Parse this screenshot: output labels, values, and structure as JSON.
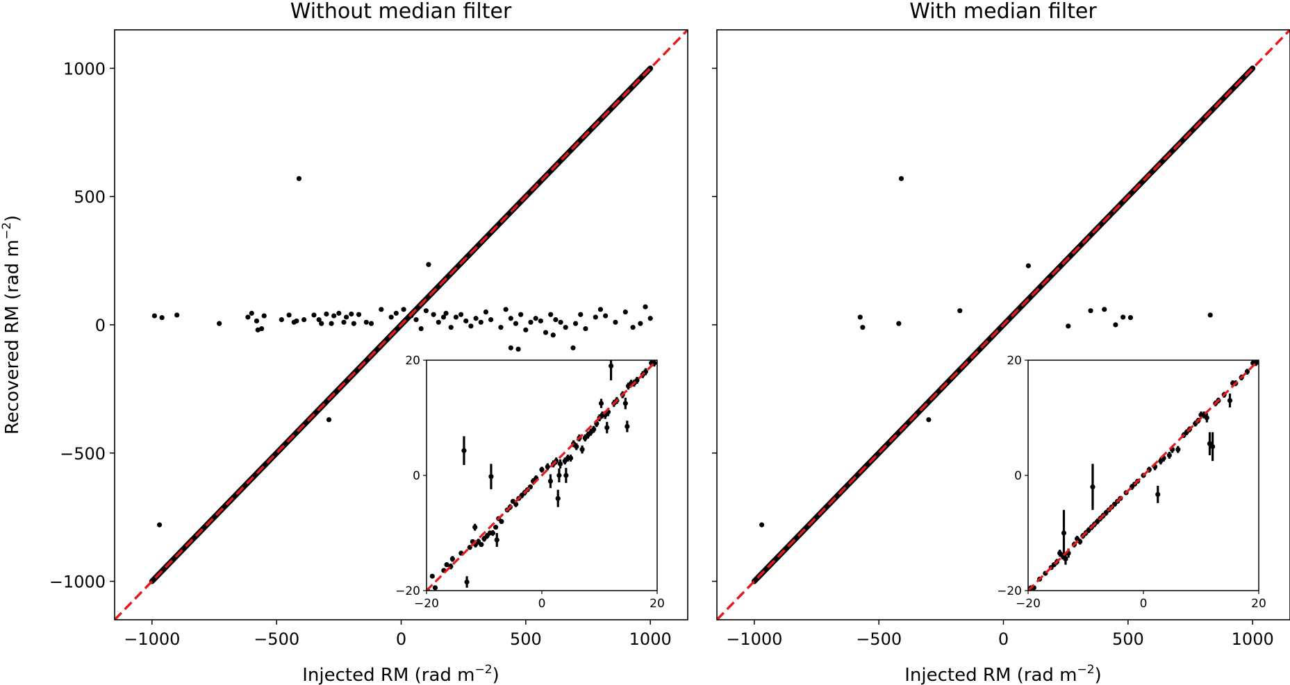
{
  "figure": {
    "ylabel_text": "Recovered RM (rad m",
    "ylabel_sup": "−2",
    "ylabel_close": ")",
    "xlabel_text": "Injected RM (rad m",
    "xlabel_sup": "−2",
    "xlabel_close": ")",
    "colors": {
      "points": "#000000",
      "reference_line": "#e41a1c",
      "axes": "#000000"
    }
  },
  "chart_data": [
    {
      "type": "scatter",
      "title": "Without median filter",
      "xlim": [
        -1150,
        1150
      ],
      "ylim": [
        -1150,
        1150
      ],
      "xticks": [
        -1000,
        -500,
        0,
        500,
        1000
      ],
      "yticks": [
        -1000,
        -500,
        0,
        500,
        1000
      ],
      "xtick_labels": [
        "−1000",
        "−500",
        "0",
        "500",
        "1000"
      ],
      "ytick_labels": [
        "−1000",
        "−500",
        "0",
        "500",
        "1000"
      ],
      "grid": false,
      "reference_line": "y = x",
      "diagonal_points_range": [
        -1000,
        1000
      ],
      "outliers": [
        [
          -990,
          35
        ],
        [
          -960,
          28
        ],
        [
          -900,
          38
        ],
        [
          -730,
          5
        ],
        [
          -615,
          30
        ],
        [
          -600,
          45
        ],
        [
          -580,
          15
        ],
        [
          -575,
          -20
        ],
        [
          -560,
          -15
        ],
        [
          -550,
          35
        ],
        [
          -480,
          20
        ],
        [
          -450,
          38
        ],
        [
          -430,
          10
        ],
        [
          -420,
          15
        ],
        [
          -410,
          570
        ],
        [
          -390,
          20
        ],
        [
          -350,
          38
        ],
        [
          -330,
          20
        ],
        [
          -320,
          5
        ],
        [
          -300,
          42
        ],
        [
          -290,
          -370
        ],
        [
          -280,
          5
        ],
        [
          -270,
          35
        ],
        [
          -250,
          45
        ],
        [
          -230,
          10
        ],
        [
          -220,
          30
        ],
        [
          -200,
          42
        ],
        [
          -190,
          5
        ],
        [
          -170,
          40
        ],
        [
          -140,
          10
        ],
        [
          -120,
          5
        ],
        [
          -80,
          60
        ],
        [
          -40,
          30
        ],
        [
          -20,
          45
        ],
        [
          10,
          60
        ],
        [
          40,
          35
        ],
        [
          60,
          20
        ],
        [
          80,
          -15
        ],
        [
          100,
          55
        ],
        [
          110,
          235
        ],
        [
          130,
          40
        ],
        [
          150,
          10
        ],
        [
          170,
          30
        ],
        [
          180,
          45
        ],
        [
          200,
          -10
        ],
        [
          220,
          30
        ],
        [
          240,
          40
        ],
        [
          260,
          15
        ],
        [
          280,
          -5
        ],
        [
          300,
          25
        ],
        [
          320,
          10
        ],
        [
          340,
          50
        ],
        [
          360,
          20
        ],
        [
          400,
          -10
        ],
        [
          420,
          60
        ],
        [
          440,
          25
        ],
        [
          460,
          5
        ],
        [
          480,
          40
        ],
        [
          500,
          -20
        ],
        [
          520,
          10
        ],
        [
          540,
          25
        ],
        [
          560,
          15
        ],
        [
          580,
          -30
        ],
        [
          600,
          40
        ],
        [
          610,
          -40
        ],
        [
          620,
          20
        ],
        [
          640,
          10
        ],
        [
          660,
          -10
        ],
        [
          690,
          -90
        ],
        [
          700,
          5
        ],
        [
          720,
          40
        ],
        [
          740,
          -15
        ],
        [
          780,
          30
        ],
        [
          800,
          60
        ],
        [
          820,
          35
        ],
        [
          860,
          10
        ],
        [
          900,
          50
        ],
        [
          930,
          -10
        ],
        [
          960,
          5
        ],
        [
          980,
          70
        ],
        [
          1000,
          25
        ],
        [
          -970,
          -780
        ],
        [
          440,
          -90
        ],
        [
          470,
          -95
        ]
      ],
      "inset": {
        "xlim": [
          -20,
          20
        ],
        "ylim": [
          -20,
          20
        ],
        "xticks": [
          -20,
          0,
          20
        ],
        "yticks": [
          -20,
          0,
          20
        ],
        "xtick_labels": [
          "−20",
          "0",
          "20"
        ],
        "ytick_labels": [
          "−20",
          "0",
          "20"
        ],
        "points": [
          [
            -19.8,
            -20,
            0.3
          ],
          [
            -19,
            -17.5,
            0.3
          ],
          [
            -18.5,
            -19.5,
            0.4
          ],
          [
            -17,
            -16.5,
            0.4
          ],
          [
            -16.5,
            -15.5,
            0.4
          ],
          [
            -15.8,
            -15.8,
            0.5
          ],
          [
            -15.5,
            -14.5,
            0.5
          ],
          [
            -14,
            -13.5,
            0.4
          ],
          [
            -13.5,
            4.3,
            2.5
          ],
          [
            -13,
            -18.5,
            1.0
          ],
          [
            -12.5,
            -12.5,
            0.4
          ],
          [
            -12,
            -11.5,
            0.4
          ],
          [
            -11.6,
            -9,
            0.6
          ],
          [
            -11.5,
            -12,
            0.5
          ],
          [
            -11,
            -11.5,
            0.5
          ],
          [
            -10.5,
            -12,
            0.4
          ],
          [
            -10,
            -11,
            0.5
          ],
          [
            -9.5,
            -10.5,
            0.5
          ],
          [
            -9,
            -10,
            0.4
          ],
          [
            -8.8,
            -0.2,
            2.2
          ],
          [
            -8.5,
            -10,
            0.5
          ],
          [
            -8,
            -9,
            0.4
          ],
          [
            -7.8,
            -11.2,
            1.2
          ],
          [
            -7.5,
            -7.5,
            0.4
          ],
          [
            -7,
            -8,
            0.4
          ],
          [
            -6,
            -6,
            0.4
          ],
          [
            -5.5,
            -5.5,
            0.5
          ],
          [
            -5,
            -4.5,
            0.4
          ],
          [
            -4.5,
            -5,
            0.5
          ],
          [
            -4,
            -4,
            0.4
          ],
          [
            -3.5,
            -3.5,
            0.5
          ],
          [
            -3,
            -3,
            0.5
          ],
          [
            -2.5,
            -2.5,
            0.4
          ],
          [
            -2,
            -2,
            0.4
          ],
          [
            -1.5,
            -1,
            0.5
          ],
          [
            -1,
            -0.5,
            0.5
          ],
          [
            0,
            1,
            0.5
          ],
          [
            1,
            1.5,
            0.6
          ],
          [
            1.5,
            -1,
            1.2
          ],
          [
            2,
            2,
            0.6
          ],
          [
            2.5,
            2.5,
            0.6
          ],
          [
            2.8,
            -4,
            1.5
          ],
          [
            3,
            0,
            1.2
          ],
          [
            3.2,
            2,
            0.8
          ],
          [
            4,
            2.5,
            0.6
          ],
          [
            4.2,
            0,
            1.3
          ],
          [
            4.5,
            3,
            0.6
          ],
          [
            5,
            3,
            0.6
          ],
          [
            5.5,
            5.5,
            0.6
          ],
          [
            6,
            5,
            0.6
          ],
          [
            6.5,
            6.5,
            0.6
          ],
          [
            7,
            4.5,
            0.7
          ],
          [
            7.5,
            6.5,
            0.6
          ],
          [
            8,
            7,
            0.6
          ],
          [
            8.5,
            7.5,
            0.6
          ],
          [
            9,
            8,
            0.6
          ],
          [
            9.5,
            9,
            0.6
          ],
          [
            10,
            10,
            0.6
          ],
          [
            10.3,
            12.5,
            0.8
          ],
          [
            10.5,
            10.5,
            0.6
          ],
          [
            11,
            10.5,
            0.7
          ],
          [
            11.3,
            8.3,
            1.0
          ],
          [
            11.5,
            11,
            0.7
          ],
          [
            12,
            19,
            2.5
          ],
          [
            12.5,
            12.5,
            0.6
          ],
          [
            13,
            13,
            0.6
          ],
          [
            14,
            14,
            0.6
          ],
          [
            14.5,
            12.5,
            1.0
          ],
          [
            14.8,
            8.5,
            1.0
          ],
          [
            15,
            15.5,
            0.6
          ],
          [
            15.5,
            16,
            0.6
          ],
          [
            16,
            16,
            0.6
          ],
          [
            16.5,
            16.5,
            0.6
          ],
          [
            17.5,
            17.5,
            0.6
          ],
          [
            18,
            18,
            0.6
          ],
          [
            19,
            19.5,
            0.6
          ],
          [
            19.5,
            19.5,
            0.6
          ]
        ]
      }
    },
    {
      "type": "scatter",
      "title": "With median filter",
      "xlim": [
        -1150,
        1150
      ],
      "ylim": [
        -1150,
        1150
      ],
      "xticks": [
        -1000,
        -500,
        0,
        500,
        1000
      ],
      "yticks": [
        -1000,
        -500,
        0,
        500,
        1000
      ],
      "xtick_labels": [
        "−1000",
        "−500",
        "0",
        "500",
        "1000"
      ],
      "ytick_labels": [
        "",
        "",
        "",
        "",
        ""
      ],
      "grid": false,
      "reference_line": "y = x",
      "diagonal_points_range": [
        -1000,
        1000
      ],
      "outliers": [
        [
          -970,
          -780
        ],
        [
          -575,
          30
        ],
        [
          -565,
          -10
        ],
        [
          -410,
          570
        ],
        [
          -420,
          5
        ],
        [
          -300,
          -370
        ],
        [
          -175,
          55
        ],
        [
          100,
          230
        ],
        [
          260,
          -5
        ],
        [
          350,
          55
        ],
        [
          405,
          60
        ],
        [
          450,
          0
        ],
        [
          480,
          30
        ],
        [
          510,
          28
        ],
        [
          830,
          38
        ]
      ],
      "inset": {
        "xlim": [
          -20,
          20
        ],
        "ylim": [
          -20,
          20
        ],
        "xticks": [
          -20,
          0,
          20
        ],
        "yticks": [
          -20,
          0,
          20
        ],
        "xtick_labels": [
          "−20",
          "0",
          "20"
        ],
        "ytick_labels": [
          "−20",
          "0",
          "20"
        ],
        "points": [
          [
            -19.8,
            -20,
            0.3
          ],
          [
            -19.5,
            -19.5,
            0.3
          ],
          [
            -19,
            -19.5,
            0.3
          ],
          [
            -18,
            -18,
            0.4
          ],
          [
            -17,
            -17,
            0.4
          ],
          [
            -16,
            -16,
            0.4
          ],
          [
            -15.5,
            -15.5,
            0.4
          ],
          [
            -15,
            -15,
            0.5
          ],
          [
            -14.5,
            -13.5,
            0.6
          ],
          [
            -14,
            -14,
            0.6
          ],
          [
            -13.8,
            -10,
            4.0
          ],
          [
            -13.5,
            -14.5,
            1.0
          ],
          [
            -13,
            -13.5,
            0.8
          ],
          [
            -12,
            -12,
            0.5
          ],
          [
            -11.5,
            -11,
            0.5
          ],
          [
            -11,
            -11.5,
            0.5
          ],
          [
            -10.5,
            -10.5,
            0.5
          ],
          [
            -10,
            -10,
            0.5
          ],
          [
            -9.5,
            -9.5,
            0.5
          ],
          [
            -9,
            -9,
            0.5
          ],
          [
            -8.8,
            -2,
            4.0
          ],
          [
            -8.5,
            -8.5,
            0.5
          ],
          [
            -8,
            -8,
            0.5
          ],
          [
            -7.5,
            -7.5,
            0.5
          ],
          [
            -7,
            -7,
            0.5
          ],
          [
            -6.5,
            -6.5,
            0.5
          ],
          [
            -6,
            -6,
            0.4
          ],
          [
            -5.5,
            -5.5,
            0.4
          ],
          [
            -5,
            -5,
            0.4
          ],
          [
            -4.5,
            -4.5,
            0.4
          ],
          [
            -4,
            -4,
            0.4
          ],
          [
            -3,
            -3,
            0.4
          ],
          [
            -2,
            -2,
            0.5
          ],
          [
            -1.5,
            -1.5,
            0.4
          ],
          [
            -1,
            -1,
            0.4
          ],
          [
            0,
            0,
            0.4
          ],
          [
            1,
            1,
            0.5
          ],
          [
            2,
            1.5,
            0.6
          ],
          [
            2.5,
            -3.3,
            1.5
          ],
          [
            3,
            2.5,
            0.6
          ],
          [
            3.5,
            3,
            0.6
          ],
          [
            4.5,
            3.5,
            0.6
          ],
          [
            5,
            4.5,
            0.6
          ],
          [
            6,
            4.5,
            0.6
          ],
          [
            7,
            7,
            0.5
          ],
          [
            7.5,
            7.5,
            0.5
          ],
          [
            8,
            8,
            0.5
          ],
          [
            9,
            9,
            0.5
          ],
          [
            9.5,
            9.5,
            0.5
          ],
          [
            10,
            10.5,
            0.6
          ],
          [
            10.5,
            10.5,
            0.6
          ],
          [
            11,
            10,
            0.8
          ],
          [
            11.5,
            5.5,
            2.0
          ],
          [
            12,
            5,
            2.5
          ],
          [
            12.5,
            12.5,
            0.5
          ],
          [
            13,
            13,
            0.5
          ],
          [
            14,
            14,
            0.5
          ],
          [
            15,
            13,
            1.2
          ],
          [
            15.5,
            16,
            0.5
          ],
          [
            16,
            16,
            0.5
          ],
          [
            17,
            17,
            0.5
          ],
          [
            18,
            18,
            0.5
          ],
          [
            19,
            19.5,
            0.5
          ],
          [
            19.5,
            19.5,
            0.5
          ],
          [
            20,
            20,
            0.5
          ]
        ]
      }
    }
  ]
}
